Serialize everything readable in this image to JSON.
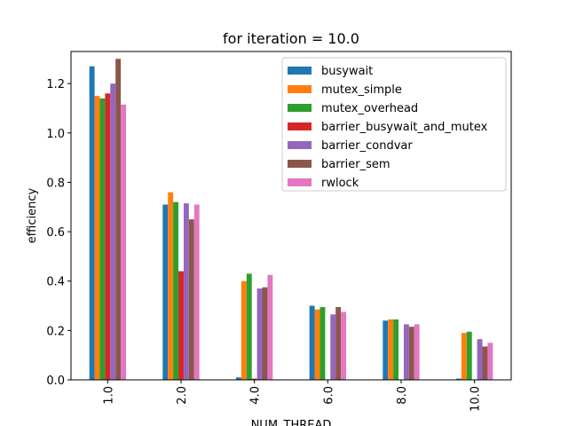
{
  "chart_data": {
    "type": "bar",
    "title": "for iteration = 10.0",
    "xlabel": "NUM_THREAD",
    "ylabel": "efficiency",
    "categories": [
      "1.0",
      "2.0",
      "4.0",
      "6.0",
      "8.0",
      "10.0"
    ],
    "ylim": [
      0,
      1.33
    ],
    "yticks": [
      "0.0",
      "0.2",
      "0.4",
      "0.6",
      "0.8",
      "1.0",
      "1.2"
    ],
    "grid": false,
    "legend_position": "top-right",
    "series": [
      {
        "name": "busywait",
        "color": "#1f77b4",
        "values": [
          1.27,
          0.71,
          0.01,
          0.3,
          0.24,
          0.005
        ]
      },
      {
        "name": "mutex_simple",
        "color": "#ff7f0e",
        "values": [
          1.15,
          0.76,
          0.4,
          0.285,
          0.245,
          0.19
        ]
      },
      {
        "name": "mutex_overhead",
        "color": "#2ca02c",
        "values": [
          1.14,
          0.72,
          0.43,
          0.295,
          0.245,
          0.195
        ]
      },
      {
        "name": "barrier_busywait_and_mutex",
        "color": "#d62728",
        "values": [
          1.16,
          0.44,
          0.005,
          0.0,
          0.0,
          0.0
        ]
      },
      {
        "name": "barrier_condvar",
        "color": "#9467bd",
        "values": [
          1.2,
          0.715,
          0.37,
          0.265,
          0.225,
          0.165
        ]
      },
      {
        "name": "barrier_sem",
        "color": "#8c564b",
        "values": [
          1.3,
          0.65,
          0.375,
          0.295,
          0.215,
          0.135
        ]
      },
      {
        "name": "rwlock",
        "color": "#e377c2",
        "values": [
          1.115,
          0.71,
          0.425,
          0.275,
          0.225,
          0.15
        ]
      }
    ]
  }
}
